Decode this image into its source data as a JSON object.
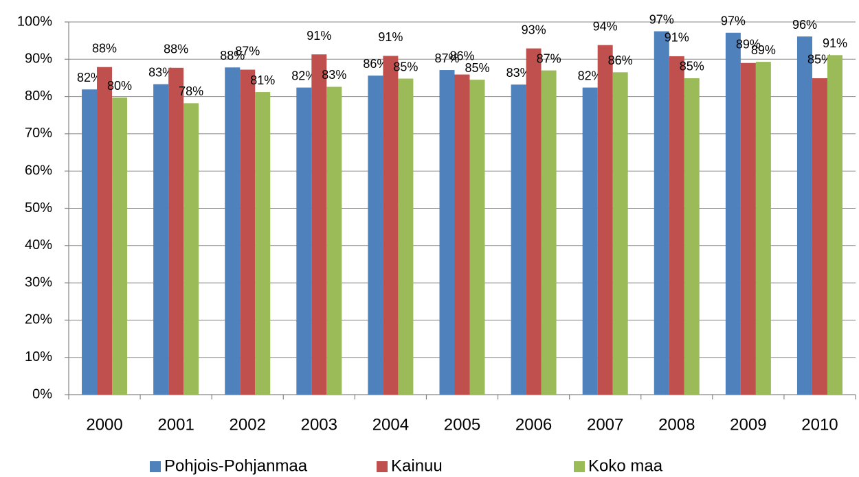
{
  "chart_data": {
    "type": "bar",
    "categories": [
      "2000",
      "2001",
      "2002",
      "2003",
      "2004",
      "2005",
      "2006",
      "2007",
      "2008",
      "2009",
      "2010"
    ],
    "series": [
      {
        "name": "Pohjois-Pohjanmaa",
        "color": "#4f81bd",
        "values": [
          81.9,
          83.3,
          87.8,
          82.4,
          85.6,
          87.1,
          83.2,
          82.4,
          97.5,
          97.1,
          96.1
        ],
        "value_labels": [
          "82%",
          "83%",
          "88%",
          "82%",
          "86%",
          "87%",
          "83%",
          "82%",
          "97%",
          "97%",
          "96%"
        ]
      },
      {
        "name": "Kainuu",
        "color": "#c0504d",
        "values": [
          87.9,
          87.7,
          87.2,
          91.3,
          90.9,
          85.9,
          92.9,
          93.8,
          90.8,
          89.0,
          84.9
        ],
        "value_labels": [
          "88%",
          "88%",
          "87%",
          "91%",
          "91%",
          "86%",
          "93%",
          "94%",
          "91%",
          "89%",
          "85%"
        ]
      },
      {
        "name": "Koko maa",
        "color": "#9bbb59",
        "values": [
          79.7,
          78.2,
          81.2,
          82.6,
          84.8,
          84.5,
          87.0,
          86.5,
          84.9,
          89.3,
          91.1
        ],
        "value_labels": [
          "80%",
          "78%",
          "81%",
          "83%",
          "85%",
          "85%",
          "87%",
          "86%",
          "85%",
          "89%",
          "91%"
        ]
      }
    ],
    "ylim": [
      0,
      100
    ],
    "yticks": [
      {
        "value": 0,
        "label": "0%"
      },
      {
        "value": 10,
        "label": "10%"
      },
      {
        "value": 20,
        "label": "20%"
      },
      {
        "value": 30,
        "label": "30%"
      },
      {
        "value": 40,
        "label": "40%"
      },
      {
        "value": 50,
        "label": "50%"
      },
      {
        "value": 60,
        "label": "60%"
      },
      {
        "value": 70,
        "label": "70%"
      },
      {
        "value": 80,
        "label": "80%"
      },
      {
        "value": 90,
        "label": "90%"
      },
      {
        "value": 100,
        "label": "100%"
      }
    ],
    "grid": true,
    "legend": "bottom"
  }
}
